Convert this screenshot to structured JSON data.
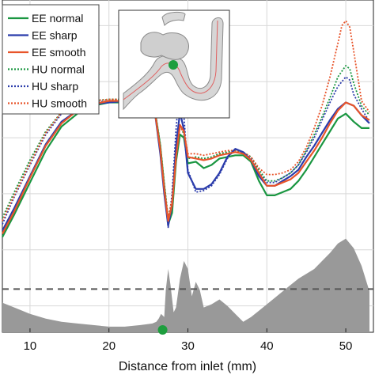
{
  "chart_data": {
    "type": "line",
    "xlabel": "Distance from inlet (mm)",
    "ylabel": "",
    "xlim": [
      6.5,
      53.5
    ],
    "ylim": [
      -4.15,
      16.6
    ],
    "x_ticks": [
      10,
      20,
      30,
      40,
      50
    ],
    "grid": true,
    "legend_position": "top-left",
    "series": [
      {
        "name": "EE normal",
        "color": "#1a9641",
        "style": "solid",
        "x": [
          6.5,
          8,
          10,
          12,
          14,
          16,
          18,
          20,
          22,
          24,
          25.5,
          26.5,
          27,
          27.5,
          28,
          28.5,
          29,
          29.5,
          30,
          31,
          32,
          33,
          34,
          35,
          36,
          37,
          38,
          39,
          40,
          41,
          42,
          43,
          44,
          45,
          46,
          47,
          48,
          49,
          50,
          51,
          52,
          53
        ],
        "y": [
          1.8,
          3.2,
          5.2,
          7.2,
          8.7,
          9.5,
          10.0,
          10.2,
          10.2,
          10.2,
          10.7,
          7.5,
          5.0,
          2.6,
          3.3,
          6.5,
          8.2,
          8.0,
          6.4,
          6.5,
          6.1,
          6.3,
          6.7,
          6.8,
          6.9,
          6.9,
          6.5,
          5.3,
          4.4,
          4.4,
          4.6,
          4.8,
          5.3,
          6.0,
          6.8,
          7.6,
          8.4,
          9.2,
          9.5,
          9.0,
          8.6,
          8.6
        ]
      },
      {
        "name": "EE sharp",
        "color": "#2b3cab",
        "style": "solid",
        "x": [
          6.5,
          8,
          10,
          12,
          14,
          16,
          18,
          20,
          22,
          24,
          25.5,
          26.5,
          27,
          27.5,
          28,
          28.5,
          29,
          29.5,
          30,
          31,
          32,
          33,
          34,
          35,
          36,
          37,
          38,
          39,
          40,
          41,
          42,
          43,
          44,
          45,
          46,
          47,
          48,
          49,
          50,
          51,
          52,
          53
        ],
        "y": [
          2.2,
          3.6,
          5.6,
          7.6,
          9.0,
          9.7,
          10.1,
          10.2,
          10.3,
          10.4,
          10.8,
          7.0,
          4.5,
          2.5,
          3.8,
          7.5,
          9.6,
          8.5,
          5.8,
          4.8,
          4.8,
          5.1,
          5.8,
          6.8,
          7.3,
          7.1,
          6.6,
          5.6,
          5.0,
          5.0,
          5.3,
          5.6,
          6.0,
          6.8,
          7.5,
          8.3,
          9.1,
          9.8,
          10.2,
          10.0,
          9.4,
          8.9
        ]
      },
      {
        "name": "EE smooth",
        "color": "#e8542a",
        "style": "solid",
        "x": [
          6.5,
          8,
          10,
          12,
          14,
          16,
          18,
          20,
          22,
          24,
          25.5,
          26.5,
          27,
          27.5,
          28,
          28.5,
          29,
          29.5,
          30,
          31,
          32,
          33,
          34,
          35,
          36,
          37,
          38,
          39,
          40,
          41,
          42,
          43,
          44,
          45,
          46,
          47,
          48,
          49,
          50,
          51,
          52,
          53
        ],
        "y": [
          2.0,
          3.4,
          5.5,
          7.5,
          8.9,
          9.7,
          10.1,
          10.3,
          10.3,
          10.3,
          10.7,
          7.3,
          4.8,
          2.8,
          3.8,
          6.8,
          8.8,
          8.4,
          6.8,
          6.7,
          6.6,
          6.7,
          6.9,
          7.0,
          7.1,
          7.0,
          6.6,
          5.8,
          5.0,
          5.0,
          5.2,
          5.4,
          5.8,
          6.5,
          7.2,
          8.0,
          8.9,
          9.7,
          10.2,
          10.0,
          9.4,
          9.1
        ]
      },
      {
        "name": "HU normal",
        "color": "#1a9641",
        "style": "dotted",
        "x": [
          6.5,
          8,
          10,
          12,
          14,
          16,
          18,
          20,
          22,
          24,
          25.5,
          26.5,
          27,
          27.5,
          28,
          28.5,
          29,
          29.5,
          30,
          31,
          32,
          33,
          34,
          35,
          36,
          37,
          38,
          39,
          40,
          41,
          42,
          43,
          44,
          45,
          46,
          47,
          48,
          49,
          50,
          50.5,
          51,
          52,
          53
        ],
        "y": [
          3.0,
          4.6,
          6.6,
          8.4,
          9.6,
          10.1,
          10.3,
          10.4,
          10.4,
          10.4,
          10.8,
          7.6,
          5.2,
          3.0,
          4.0,
          7.0,
          8.8,
          8.2,
          6.7,
          6.8,
          6.7,
          6.8,
          7.0,
          7.1,
          7.2,
          7.1,
          6.8,
          6.0,
          5.3,
          5.3,
          5.5,
          5.8,
          6.3,
          7.2,
          8.2,
          9.3,
          10.5,
          11.8,
          12.5,
          12.3,
          11.4,
          10.0,
          9.4
        ]
      },
      {
        "name": "HU sharp",
        "color": "#2b3cab",
        "style": "dotted",
        "x": [
          6.5,
          8,
          10,
          12,
          14,
          16,
          18,
          20,
          22,
          24,
          25.5,
          26.5,
          27,
          27.5,
          28,
          28.5,
          29,
          29.5,
          30,
          31,
          32,
          33,
          34,
          35,
          36,
          37,
          38,
          39,
          40,
          41,
          42,
          43,
          44,
          45,
          46,
          47,
          48,
          49,
          50,
          50.5,
          51,
          52,
          53
        ],
        "y": [
          2.6,
          4.3,
          6.3,
          8.2,
          9.5,
          10.0,
          10.2,
          10.3,
          10.3,
          10.5,
          10.9,
          7.2,
          4.7,
          2.4,
          4.5,
          8.5,
          11.6,
          9.3,
          6.0,
          4.6,
          4.7,
          5.0,
          5.7,
          6.7,
          7.3,
          7.1,
          6.7,
          5.8,
          5.2,
          5.2,
          5.5,
          5.8,
          6.3,
          7.1,
          8.0,
          9.1,
          10.2,
          11.2,
          11.8,
          11.6,
          10.7,
          9.8,
          9.0
        ]
      },
      {
        "name": "HU smooth",
        "color": "#e8542a",
        "style": "dotted",
        "x": [
          6.5,
          8,
          10,
          12,
          14,
          16,
          18,
          20,
          22,
          24,
          25.5,
          26.5,
          27,
          27.5,
          28,
          28.5,
          29,
          29.5,
          30,
          31,
          32,
          33,
          34,
          35,
          36,
          37,
          38,
          39,
          40,
          41,
          42,
          43,
          44,
          45,
          46,
          47,
          48,
          49,
          49.5,
          50,
          50.5,
          51,
          52,
          53
        ],
        "y": [
          2.8,
          4.4,
          6.4,
          8.3,
          9.6,
          10.1,
          10.3,
          10.4,
          10.4,
          10.4,
          10.8,
          7.4,
          5.0,
          3.0,
          4.2,
          7.0,
          8.7,
          8.3,
          7.0,
          7.0,
          6.9,
          7.0,
          7.1,
          7.2,
          7.2,
          7.1,
          6.8,
          6.1,
          5.7,
          5.7,
          5.8,
          6.0,
          6.5,
          7.4,
          8.6,
          10.0,
          11.8,
          13.9,
          15.0,
          15.3,
          14.9,
          13.4,
          10.3,
          9.6
        ]
      }
    ],
    "background_profile": {
      "color": "#999999",
      "x": [
        6.5,
        8,
        10,
        12,
        14,
        16,
        18,
        20,
        22,
        24,
        25.5,
        26,
        26.3,
        26.6,
        27,
        27.2,
        27.5,
        27.8,
        28.2,
        28.5,
        29,
        29.5,
        30,
        30.5,
        31,
        31.5,
        32,
        33,
        34,
        35,
        36,
        37,
        38,
        39,
        40,
        41,
        42,
        43,
        44,
        45,
        46,
        47,
        48,
        49,
        50,
        51,
        52,
        53
      ],
      "y": [
        -2.3,
        -2.6,
        -3.0,
        -3.3,
        -3.5,
        -3.6,
        -3.7,
        -3.8,
        -3.8,
        -3.7,
        -3.6,
        -3.5,
        -3.3,
        -3.0,
        -3.2,
        -1.5,
        -0.2,
        -1.2,
        -2.9,
        -2.6,
        -0.8,
        0.3,
        -0.2,
        -1.9,
        -1.0,
        -1.5,
        -2.6,
        -2.4,
        -2.1,
        -2.5,
        -3.0,
        -3.5,
        -3.2,
        -2.8,
        -2.4,
        -2.0,
        -1.6,
        -1.2,
        -0.8,
        -0.5,
        -0.2,
        0.3,
        0.8,
        1.4,
        1.7,
        1.1,
        0.0,
        -1.6
      ]
    },
    "threshold_line": {
      "y": -1.45,
      "color": "#555555",
      "style": "dashed"
    },
    "marker": {
      "x": 26.8,
      "y": -4.0,
      "color": "#1e9e3e"
    },
    "inset": {
      "description_icon": "vessel-aneurysm-inset",
      "marker_color": "#1e9e3e",
      "centerline_color": "#e06060"
    }
  }
}
